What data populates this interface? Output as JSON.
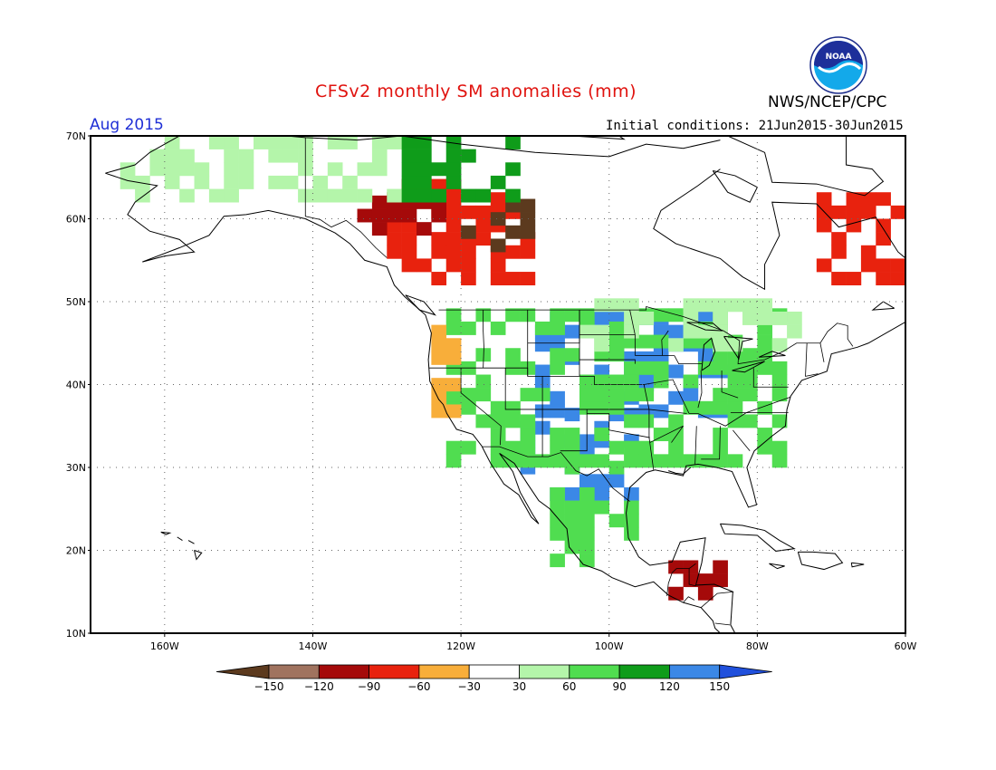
{
  "header": {
    "title": "CFSv2 monthly SM anomalies (mm)",
    "agency": "NWS/NCEP/CPC",
    "valid_month": "Aug 2015",
    "initial_conditions": "Initial conditions: 21Jun2015-30Jun2015",
    "logo_text": "NOAA"
  },
  "map": {
    "lat_range": [
      10,
      70
    ],
    "lon_range": [
      -170,
      -60
    ],
    "lat_labels": [
      {
        "lat": 70,
        "label": "70N"
      },
      {
        "lat": 60,
        "label": "60N"
      },
      {
        "lat": 50,
        "label": "50N"
      },
      {
        "lat": 40,
        "label": "40N"
      },
      {
        "lat": 30,
        "label": "30N"
      },
      {
        "lat": 20,
        "label": "20N"
      },
      {
        "lat": 10,
        "label": "10N"
      }
    ],
    "lon_labels": [
      {
        "lon": -160,
        "label": "160W"
      },
      {
        "lon": -140,
        "label": "140W"
      },
      {
        "lon": -120,
        "label": "120W"
      },
      {
        "lon": -100,
        "label": "100W"
      },
      {
        "lon": -80,
        "label": "80W"
      },
      {
        "lon": -60,
        "label": "60W"
      }
    ],
    "grid": "dotted"
  },
  "colorbar": {
    "ticks": [
      "-150",
      "-120",
      "-90",
      "-60",
      "-30",
      "30",
      "60",
      "90",
      "120",
      "150"
    ],
    "colors": [
      "#5c3a1e",
      "#a0735f",
      "#a50a0a",
      "#e8220e",
      "#f8ae3a",
      "#ffffff",
      "#b4f5aa",
      "#50dd50",
      "#0f9c1a",
      "#3b88e6",
      "#2050dc"
    ]
  },
  "anomaly_regions": [
    {
      "lat0": 36,
      "lat1": 48,
      "lon0": -110,
      "lon1": -84,
      "cat": "wet120"
    },
    {
      "lat0": 26,
      "lat1": 37,
      "lon0": -112,
      "lon1": -96,
      "cat": "wet120"
    },
    {
      "lat0": 30,
      "lat1": 48,
      "lon0": -122,
      "lon1": -76,
      "cat": "wet60"
    },
    {
      "lat0": 44,
      "lat1": 50,
      "lon0": -104,
      "lon1": -74,
      "cat": "wet30"
    },
    {
      "lat0": 18,
      "lat1": 30,
      "lon0": -108,
      "lon1": -96,
      "cat": "wet60"
    },
    {
      "lat0": 52,
      "lat1": 64,
      "lon0": -130,
      "lon1": -110,
      "cat": "dry60"
    },
    {
      "lat0": 56,
      "lat1": 62,
      "lon0": -120,
      "lon1": -110,
      "cat": "dry150"
    },
    {
      "lat0": 58,
      "lat1": 62,
      "lon0": -134,
      "lon1": -122,
      "cat": "dry90"
    },
    {
      "lat0": 62,
      "lat1": 70,
      "lon0": -166,
      "lon1": -128,
      "cat": "wet30"
    },
    {
      "lat0": 62,
      "lat1": 70,
      "lon0": -128,
      "lon1": -112,
      "cat": "wet90"
    },
    {
      "lat0": 52,
      "lat1": 62,
      "lon0": -72,
      "lon1": -60,
      "cat": "dry60"
    },
    {
      "lat0": 14,
      "lat1": 18,
      "lon0": -94,
      "lon1": -84,
      "cat": "dry90"
    },
    {
      "lat0": 36,
      "lat1": 48,
      "lon0": -124,
      "lon1": -120,
      "cat": "dry30"
    }
  ]
}
